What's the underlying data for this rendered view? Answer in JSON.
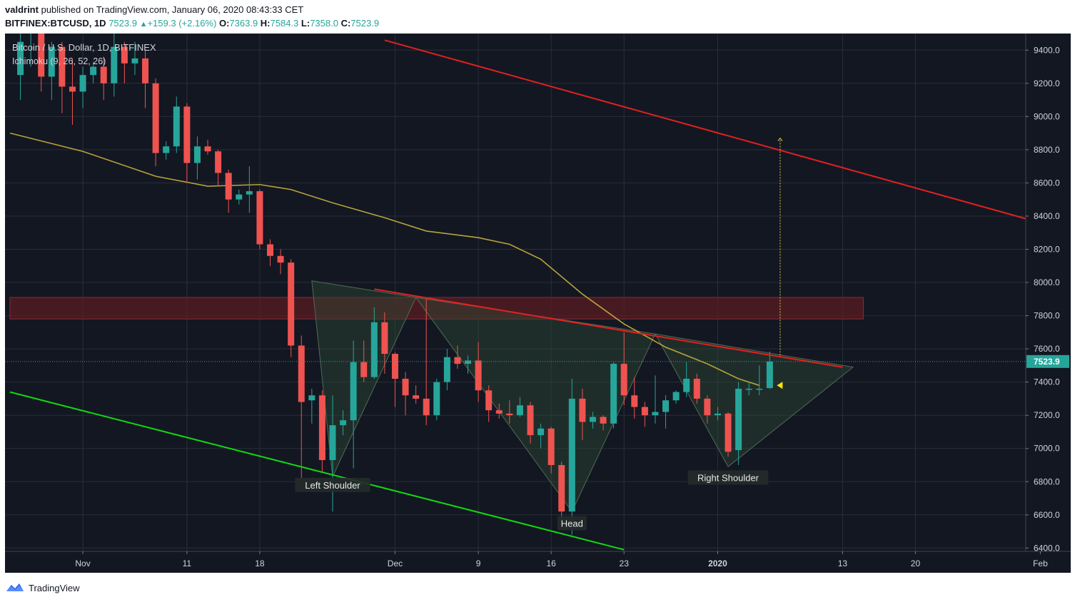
{
  "header": {
    "author": "valdrint",
    "publish_text": "published on TradingView.com, January 06, 2020 08:43:33 CET",
    "symbol_line": "BITFINEX:BTCUSD, 1D",
    "last": "7523.9",
    "change": "+159.3 (+2.16%)",
    "o_label": "O:",
    "o": "7363.9",
    "h_label": "H:",
    "h": "7584.3",
    "l_label": "L:",
    "l": "7358.0",
    "c_label": "C:",
    "c": "7523.9"
  },
  "legend": {
    "title": "Bitcoin / U.S. Dollar, 1D, BITFINEX",
    "indicator": "Ichimoku (9, 26, 52, 26)"
  },
  "footer": {
    "brand": "TradingView"
  },
  "colors": {
    "background": "#131722",
    "up": "#26a69a",
    "down": "#ef5350",
    "grid": "#2a2e39",
    "axis_text": "#d1d4dc",
    "ichimoku_line": "#b8a33a",
    "resistance": "#e32020",
    "support": "#11d811",
    "pattern_fill": "#2e4a36",
    "zone_fill": "#5a1c23",
    "price_tag": "#26a69a"
  },
  "chart_data": {
    "type": "candlestick",
    "y_axis": {
      "range": [
        6380,
        9500
      ],
      "ticks": [
        6400,
        6600,
        6800,
        7000,
        7200,
        7400,
        7600,
        7800,
        8000,
        8200,
        8400,
        8600,
        8800,
        9000,
        9200,
        9400
      ],
      "tick_labels": [
        "6400.0",
        "6600.0",
        "6800.0",
        "7000.0",
        "7200.0",
        "7400.0",
        "7600.0",
        "7800.0",
        "8000.0",
        "8200.0",
        "8400.0",
        "8600.0",
        "8800.0",
        "9000.0",
        "9200.0",
        "9400.0"
      ]
    },
    "x_axis": {
      "date_range": [
        "2019-10-25",
        "2020-02-01"
      ],
      "tick_dates": [
        "2019-11-01",
        "2019-11-11",
        "2019-11-18",
        "2019-12-01",
        "2019-12-09",
        "2019-12-16",
        "2019-12-23",
        "2020-01-01",
        "2020-01-13",
        "2020-01-20",
        "2020-02-01"
      ],
      "tick_labels": [
        "Nov",
        "11",
        "18",
        "Dec",
        "9",
        "16",
        "23",
        "2020",
        "13",
        "20",
        "Feb"
      ]
    },
    "current_price": 7523.9,
    "current_price_label": "7523.9",
    "candles": [
      {
        "d": "2019-10-26",
        "o": 9250,
        "h": 9600,
        "l": 9100,
        "c": 9450
      },
      {
        "d": "2019-10-27",
        "o": 9500,
        "h": 9750,
        "l": 9300,
        "c": 9600
      },
      {
        "d": "2019-10-28",
        "o": 9520,
        "h": 9600,
        "l": 9150,
        "c": 9240
      },
      {
        "d": "2019-10-29",
        "o": 9240,
        "h": 9450,
        "l": 9100,
        "c": 9420
      },
      {
        "d": "2019-10-30",
        "o": 9420,
        "h": 9450,
        "l": 9020,
        "c": 9180
      },
      {
        "d": "2019-10-31",
        "o": 9180,
        "h": 9350,
        "l": 8950,
        "c": 9150
      },
      {
        "d": "2019-11-01",
        "o": 9150,
        "h": 9300,
        "l": 9050,
        "c": 9250
      },
      {
        "d": "2019-11-02",
        "o": 9250,
        "h": 9330,
        "l": 9200,
        "c": 9300
      },
      {
        "d": "2019-11-03",
        "o": 9300,
        "h": 9360,
        "l": 9100,
        "c": 9200
      },
      {
        "d": "2019-11-04",
        "o": 9200,
        "h": 9500,
        "l": 9120,
        "c": 9420
      },
      {
        "d": "2019-11-05",
        "o": 9420,
        "h": 9450,
        "l": 9200,
        "c": 9320
      },
      {
        "d": "2019-11-06",
        "o": 9320,
        "h": 9450,
        "l": 9250,
        "c": 9350
      },
      {
        "d": "2019-11-07",
        "o": 9350,
        "h": 9400,
        "l": 9050,
        "c": 9200
      },
      {
        "d": "2019-11-08",
        "o": 9200,
        "h": 9230,
        "l": 8700,
        "c": 8780
      },
      {
        "d": "2019-11-09",
        "o": 8780,
        "h": 8850,
        "l": 8740,
        "c": 8820
      },
      {
        "d": "2019-11-10",
        "o": 8820,
        "h": 9120,
        "l": 8780,
        "c": 9060
      },
      {
        "d": "2019-11-11",
        "o": 9060,
        "h": 9080,
        "l": 8600,
        "c": 8720
      },
      {
        "d": "2019-11-12",
        "o": 8720,
        "h": 8880,
        "l": 8620,
        "c": 8820
      },
      {
        "d": "2019-11-13",
        "o": 8820,
        "h": 8860,
        "l": 8770,
        "c": 8790
      },
      {
        "d": "2019-11-14",
        "o": 8790,
        "h": 8800,
        "l": 8580,
        "c": 8660
      },
      {
        "d": "2019-11-15",
        "o": 8660,
        "h": 8680,
        "l": 8420,
        "c": 8500
      },
      {
        "d": "2019-11-16",
        "o": 8500,
        "h": 8560,
        "l": 8470,
        "c": 8530
      },
      {
        "d": "2019-11-17",
        "o": 8530,
        "h": 8700,
        "l": 8420,
        "c": 8550
      },
      {
        "d": "2019-11-18",
        "o": 8550,
        "h": 8560,
        "l": 8200,
        "c": 8230
      },
      {
        "d": "2019-11-19",
        "o": 8230,
        "h": 8260,
        "l": 8100,
        "c": 8160
      },
      {
        "d": "2019-11-20",
        "o": 8160,
        "h": 8200,
        "l": 8050,
        "c": 8120
      },
      {
        "d": "2019-11-21",
        "o": 8120,
        "h": 8140,
        "l": 7550,
        "c": 7620
      },
      {
        "d": "2019-11-22",
        "o": 7620,
        "h": 7680,
        "l": 6820,
        "c": 7280
      },
      {
        "d": "2019-11-23",
        "o": 7290,
        "h": 7360,
        "l": 7150,
        "c": 7320
      },
      {
        "d": "2019-11-24",
        "o": 7320,
        "h": 7350,
        "l": 6860,
        "c": 6930
      },
      {
        "d": "2019-11-25",
        "o": 6930,
        "h": 7320,
        "l": 6620,
        "c": 7140
      },
      {
        "d": "2019-11-26",
        "o": 7140,
        "h": 7230,
        "l": 7080,
        "c": 7170
      },
      {
        "d": "2019-11-27",
        "o": 7170,
        "h": 7650,
        "l": 6880,
        "c": 7520
      },
      {
        "d": "2019-11-28",
        "o": 7520,
        "h": 7650,
        "l": 7400,
        "c": 7430
      },
      {
        "d": "2019-11-29",
        "o": 7430,
        "h": 7850,
        "l": 7420,
        "c": 7760
      },
      {
        "d": "2019-11-30",
        "o": 7760,
        "h": 7820,
        "l": 7450,
        "c": 7570
      },
      {
        "d": "2019-12-01",
        "o": 7570,
        "h": 7580,
        "l": 7250,
        "c": 7420
      },
      {
        "d": "2019-12-02",
        "o": 7420,
        "h": 7460,
        "l": 7200,
        "c": 7320
      },
      {
        "d": "2019-12-03",
        "o": 7320,
        "h": 7380,
        "l": 7270,
        "c": 7300
      },
      {
        "d": "2019-12-04",
        "o": 7300,
        "h": 7900,
        "l": 7140,
        "c": 7200
      },
      {
        "d": "2019-12-05",
        "o": 7200,
        "h": 7420,
        "l": 7170,
        "c": 7400
      },
      {
        "d": "2019-12-06",
        "o": 7400,
        "h": 7600,
        "l": 7350,
        "c": 7550
      },
      {
        "d": "2019-12-07",
        "o": 7550,
        "h": 7620,
        "l": 7480,
        "c": 7510
      },
      {
        "d": "2019-12-08",
        "o": 7510,
        "h": 7560,
        "l": 7450,
        "c": 7530
      },
      {
        "d": "2019-12-09",
        "o": 7530,
        "h": 7640,
        "l": 7280,
        "c": 7350
      },
      {
        "d": "2019-12-10",
        "o": 7350,
        "h": 7380,
        "l": 7160,
        "c": 7230
      },
      {
        "d": "2019-12-11",
        "o": 7230,
        "h": 7270,
        "l": 7180,
        "c": 7210
      },
      {
        "d": "2019-12-12",
        "o": 7210,
        "h": 7290,
        "l": 7150,
        "c": 7200
      },
      {
        "d": "2019-12-13",
        "o": 7200,
        "h": 7310,
        "l": 7190,
        "c": 7260
      },
      {
        "d": "2019-12-14",
        "o": 7260,
        "h": 7280,
        "l": 7030,
        "c": 7080
      },
      {
        "d": "2019-12-15",
        "o": 7080,
        "h": 7150,
        "l": 7000,
        "c": 7120
      },
      {
        "d": "2019-12-16",
        "o": 7120,
        "h": 7130,
        "l": 6850,
        "c": 6900
      },
      {
        "d": "2019-12-17",
        "o": 6900,
        "h": 6920,
        "l": 6580,
        "c": 6620
      },
      {
        "d": "2019-12-18",
        "o": 6620,
        "h": 7420,
        "l": 6480,
        "c": 7300
      },
      {
        "d": "2019-12-19",
        "o": 7300,
        "h": 7360,
        "l": 7050,
        "c": 7160
      },
      {
        "d": "2019-12-20",
        "o": 7160,
        "h": 7220,
        "l": 7120,
        "c": 7190
      },
      {
        "d": "2019-12-21",
        "o": 7190,
        "h": 7200,
        "l": 7110,
        "c": 7150
      },
      {
        "d": "2019-12-22",
        "o": 7150,
        "h": 7520,
        "l": 7120,
        "c": 7510
      },
      {
        "d": "2019-12-23",
        "o": 7510,
        "h": 7700,
        "l": 7260,
        "c": 7320
      },
      {
        "d": "2019-12-24",
        "o": 7320,
        "h": 7430,
        "l": 7180,
        "c": 7250
      },
      {
        "d": "2019-12-25",
        "o": 7250,
        "h": 7280,
        "l": 7130,
        "c": 7200
      },
      {
        "d": "2019-12-26",
        "o": 7200,
        "h": 7440,
        "l": 7150,
        "c": 7220
      },
      {
        "d": "2019-12-27",
        "o": 7220,
        "h": 7320,
        "l": 7120,
        "c": 7290
      },
      {
        "d": "2019-12-28",
        "o": 7290,
        "h": 7350,
        "l": 7270,
        "c": 7340
      },
      {
        "d": "2019-12-29",
        "o": 7340,
        "h": 7520,
        "l": 7310,
        "c": 7420
      },
      {
        "d": "2019-12-30",
        "o": 7420,
        "h": 7450,
        "l": 7270,
        "c": 7300
      },
      {
        "d": "2019-12-31",
        "o": 7300,
        "h": 7320,
        "l": 7150,
        "c": 7200
      },
      {
        "d": "2020-01-01",
        "o": 7200,
        "h": 7250,
        "l": 7170,
        "c": 7210
      },
      {
        "d": "2020-01-02",
        "o": 7210,
        "h": 7220,
        "l": 6950,
        "c": 6980
      },
      {
        "d": "2020-01-03",
        "o": 6990,
        "h": 7400,
        "l": 6900,
        "c": 7360
      },
      {
        "d": "2020-01-04",
        "o": 7360,
        "h": 7400,
        "l": 7320,
        "c": 7360
      },
      {
        "d": "2020-01-05",
        "o": 7360,
        "h": 7500,
        "l": 7320,
        "c": 7360
      },
      {
        "d": "2020-01-06",
        "o": 7363.9,
        "h": 7584.3,
        "l": 7358.0,
        "c": 7523.9
      }
    ],
    "ichimoku_line": [
      {
        "d": "2019-10-25",
        "v": 8900
      },
      {
        "d": "2019-11-01",
        "v": 8790
      },
      {
        "d": "2019-11-08",
        "v": 8640
      },
      {
        "d": "2019-11-13",
        "v": 8580
      },
      {
        "d": "2019-11-18",
        "v": 8590
      },
      {
        "d": "2019-11-21",
        "v": 8560
      },
      {
        "d": "2019-11-25",
        "v": 8480
      },
      {
        "d": "2019-11-30",
        "v": 8390
      },
      {
        "d": "2019-12-04",
        "v": 8310
      },
      {
        "d": "2019-12-09",
        "v": 8270
      },
      {
        "d": "2019-12-12",
        "v": 8230
      },
      {
        "d": "2019-12-15",
        "v": 8140
      },
      {
        "d": "2019-12-19",
        "v": 7930
      },
      {
        "d": "2019-12-23",
        "v": 7750
      },
      {
        "d": "2019-12-27",
        "v": 7610
      },
      {
        "d": "2019-12-31",
        "v": 7510
      },
      {
        "d": "2020-01-03",
        "v": 7420
      },
      {
        "d": "2020-01-05",
        "v": 7380
      }
    ],
    "resistance_zone": {
      "from": "2019-10-25",
      "to": "2020-01-15",
      "low": 7780,
      "high": 7910
    },
    "trendlines": [
      {
        "name": "upper-channel",
        "color": "red",
        "from": {
          "d": "2019-11-30",
          "v": 9460
        },
        "to": {
          "d": "2020-02-01",
          "v": 8360
        }
      },
      {
        "name": "neckline",
        "color": "red",
        "from": {
          "d": "2019-11-29",
          "v": 7960
        },
        "to": {
          "d": "2020-01-13",
          "v": 7490
        }
      },
      {
        "name": "lower-channel",
        "color": "green",
        "from": {
          "d": "2019-10-25",
          "v": 7340
        },
        "to": {
          "d": "2019-12-23",
          "v": 6390
        }
      }
    ],
    "pattern_triangles": [
      {
        "points": [
          {
            "d": "2019-11-23",
            "v": 8010
          },
          {
            "d": "2019-11-25",
            "v": 6830
          },
          {
            "d": "2019-12-03",
            "v": 7910
          }
        ]
      },
      {
        "points": [
          {
            "d": "2019-12-03",
            "v": 7910
          },
          {
            "d": "2019-12-18",
            "v": 6620
          },
          {
            "d": "2019-12-26",
            "v": 7690
          }
        ]
      },
      {
        "points": [
          {
            "d": "2019-12-26",
            "v": 7690
          },
          {
            "d": "2020-01-02",
            "v": 6890
          },
          {
            "d": "2020-01-14",
            "v": 7490
          }
        ]
      }
    ],
    "target_projection": {
      "d": "2020-01-07",
      "from": 7560,
      "to": 8870
    },
    "annotations": [
      {
        "label": "Left Shoulder",
        "d": "2019-11-25",
        "v": 6780
      },
      {
        "label": "Head",
        "d": "2019-12-18",
        "v": 6550
      },
      {
        "label": "Right Shoulder",
        "d": "2020-01-02",
        "v": 6825
      }
    ]
  }
}
